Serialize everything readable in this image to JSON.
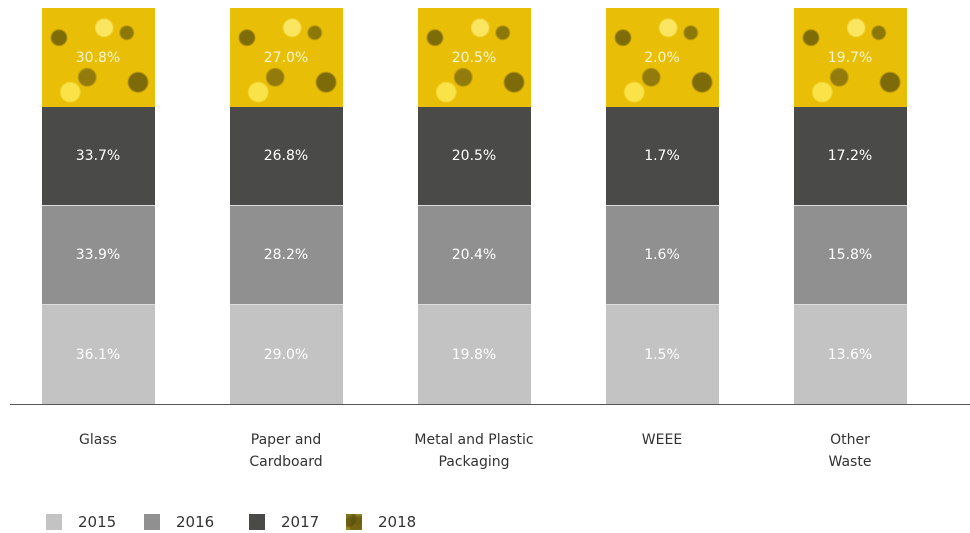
{
  "legend": [
    "2015",
    "2016",
    "2017",
    "2018"
  ],
  "columns": [
    {
      "label": "Glass",
      "values": [
        "36.1%",
        "33.9%",
        "33.7%",
        "30.8%"
      ]
    },
    {
      "label": "Paper and\nCardboard",
      "values": [
        "29.0%",
        "28.2%",
        "26.8%",
        "27.0%"
      ]
    },
    {
      "label": "Metal and Plastic\nPackaging",
      "values": [
        "19.8%",
        "20.4%",
        "20.5%",
        "20.5%"
      ]
    },
    {
      "label": "WEEE",
      "values": [
        "1.5%",
        "1.6%",
        "1.7%",
        "2.0%"
      ]
    },
    {
      "label": "Other\nWaste",
      "values": [
        "13.6%",
        "15.8%",
        "17.2%",
        "19.7%"
      ]
    }
  ]
}
